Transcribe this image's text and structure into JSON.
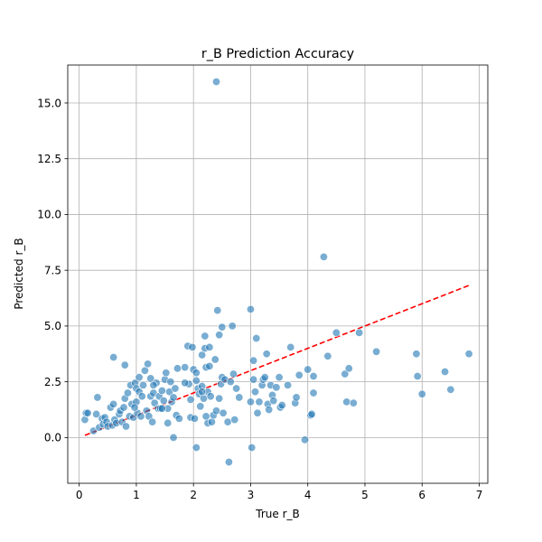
{
  "chart_data": {
    "type": "scatter",
    "title": "r_B Prediction Accuracy",
    "xlabel": "True r_B",
    "ylabel": "Predicted r_B",
    "xlim": [
      -0.2,
      7.15
    ],
    "ylim": [
      -2.05,
      16.7
    ],
    "xticks": [
      0,
      1,
      2,
      3,
      4,
      5,
      6,
      7
    ],
    "xtick_labels": [
      "0",
      "1",
      "2",
      "3",
      "4",
      "5",
      "6",
      "7"
    ],
    "yticks": [
      0.0,
      2.5,
      5.0,
      7.5,
      10.0,
      12.5,
      15.0
    ],
    "ytick_labels": [
      "0.0",
      "2.5",
      "5.0",
      "7.5",
      "10.0",
      "12.5",
      "15.0"
    ],
    "grid": true,
    "colors": {
      "points": "#1f77b4",
      "reference": "#ff0000",
      "grid": "#b0b0b0"
    },
    "reference_line": {
      "style": "dashed",
      "x": [
        0.1,
        6.82
      ],
      "y": [
        0.1,
        6.82
      ]
    },
    "points": [
      [
        0.1,
        0.8
      ],
      [
        0.12,
        1.1
      ],
      [
        0.15,
        1.1
      ],
      [
        0.25,
        0.3
      ],
      [
        0.3,
        1.05
      ],
      [
        0.32,
        1.8
      ],
      [
        0.35,
        0.45
      ],
      [
        0.4,
        0.85
      ],
      [
        0.42,
        0.6
      ],
      [
        0.45,
        0.9
      ],
      [
        0.48,
        0.7
      ],
      [
        0.5,
        0.5
      ],
      [
        0.55,
        1.35
      ],
      [
        0.58,
        0.55
      ],
      [
        0.6,
        1.5
      ],
      [
        0.6,
        3.6
      ],
      [
        0.62,
        0.8
      ],
      [
        0.65,
        0.65
      ],
      [
        0.7,
        1.05
      ],
      [
        0.72,
        1.2
      ],
      [
        0.75,
        0.7
      ],
      [
        0.78,
        1.35
      ],
      [
        0.8,
        1.75
      ],
      [
        0.8,
        3.25
      ],
      [
        0.82,
        0.5
      ],
      [
        0.85,
        2.0
      ],
      [
        0.88,
        0.95
      ],
      [
        0.9,
        2.35
      ],
      [
        0.92,
        1.5
      ],
      [
        0.95,
        0.9
      ],
      [
        0.98,
        2.45
      ],
      [
        1.0,
        1.6
      ],
      [
        1.0,
        2.2
      ],
      [
        1.02,
        1.1
      ],
      [
        1.05,
        2.05
      ],
      [
        1.05,
        2.7
      ],
      [
        1.08,
        0.95
      ],
      [
        1.1,
        1.85
      ],
      [
        1.12,
        2.35
      ],
      [
        1.15,
        3.0
      ],
      [
        1.18,
        1.2
      ],
      [
        1.2,
        3.3
      ],
      [
        1.22,
        0.95
      ],
      [
        1.25,
        1.85
      ],
      [
        1.25,
        2.65
      ],
      [
        1.28,
        0.7
      ],
      [
        1.3,
        2.0
      ],
      [
        1.32,
        1.55
      ],
      [
        1.35,
        2.45
      ],
      [
        1.38,
        1.3
      ],
      [
        1.4,
        1.85
      ],
      [
        1.42,
        1.3
      ],
      [
        1.45,
        2.1
      ],
      [
        1.48,
        1.65
      ],
      [
        1.5,
        2.6
      ],
      [
        1.52,
        2.9
      ],
      [
        1.55,
        1.3
      ],
      [
        1.55,
        0.65
      ],
      [
        1.58,
        2.05
      ],
      [
        1.6,
        2.5
      ],
      [
        1.62,
        1.6
      ],
      [
        1.65,
        1.8
      ],
      [
        1.65,
        0.0
      ],
      [
        1.68,
        2.2
      ],
      [
        1.7,
        1.0
      ],
      [
        1.72,
        3.1
      ],
      [
        1.75,
        0.85
      ],
      [
        1.85,
        3.15
      ],
      [
        1.9,
        4.1
      ],
      [
        1.92,
        2.4
      ],
      [
        1.95,
        1.7
      ],
      [
        1.95,
        0.9
      ],
      [
        1.98,
        4.05
      ],
      [
        2.0,
        3.05
      ],
      [
        2.02,
        0.85
      ],
      [
        2.05,
        2.9
      ],
      [
        2.05,
        -0.45
      ],
      [
        2.08,
        2.2
      ],
      [
        2.1,
        1.95
      ],
      [
        2.12,
        1.4
      ],
      [
        2.15,
        3.7
      ],
      [
        2.15,
        2.3
      ],
      [
        2.18,
        1.75
      ],
      [
        2.2,
        4.0
      ],
      [
        2.2,
        4.55
      ],
      [
        2.22,
        0.95
      ],
      [
        2.22,
        3.15
      ],
      [
        2.25,
        2.05
      ],
      [
        2.25,
        0.65
      ],
      [
        2.28,
        3.2
      ],
      [
        2.28,
        4.05
      ],
      [
        2.3,
        1.85
      ],
      [
        2.32,
        0.7
      ],
      [
        2.35,
        1.0
      ],
      [
        2.38,
        3.5
      ],
      [
        2.4,
        1.2
      ],
      [
        2.42,
        5.7
      ],
      [
        2.45,
        4.6
      ],
      [
        2.45,
        1.75
      ],
      [
        2.48,
        2.4
      ],
      [
        2.5,
        4.95
      ],
      [
        2.5,
        2.7
      ],
      [
        2.52,
        1.1
      ],
      [
        2.55,
        2.6
      ],
      [
        2.6,
        0.7
      ],
      [
        2.62,
        -1.1
      ],
      [
        2.65,
        2.5
      ],
      [
        2.68,
        5.0
      ],
      [
        2.7,
        2.85
      ],
      [
        2.72,
        0.8
      ],
      [
        2.75,
        2.2
      ],
      [
        2.8,
        1.8
      ],
      [
        3.0,
        5.75
      ],
      [
        3.0,
        1.6
      ],
      [
        3.02,
        -0.45
      ],
      [
        3.05,
        3.45
      ],
      [
        3.05,
        2.6
      ],
      [
        3.08,
        2.05
      ],
      [
        3.1,
        4.45
      ],
      [
        3.12,
        1.1
      ],
      [
        3.15,
        1.6
      ],
      [
        3.2,
        2.35
      ],
      [
        3.22,
        2.6
      ],
      [
        3.25,
        2.7
      ],
      [
        3.28,
        3.75
      ],
      [
        3.3,
        1.5
      ],
      [
        3.32,
        1.25
      ],
      [
        3.35,
        2.35
      ],
      [
        3.38,
        1.9
      ],
      [
        3.4,
        1.65
      ],
      [
        3.45,
        2.25
      ],
      [
        3.5,
        2.7
      ],
      [
        3.52,
        1.35
      ],
      [
        3.55,
        1.45
      ],
      [
        3.65,
        2.35
      ],
      [
        3.7,
        4.05
      ],
      [
        3.78,
        1.55
      ],
      [
        3.8,
        1.8
      ],
      [
        3.85,
        2.8
      ],
      [
        3.95,
        -0.1
      ],
      [
        4.0,
        3.05
      ],
      [
        4.05,
        1.0
      ],
      [
        4.07,
        1.05
      ],
      [
        4.1,
        2.0
      ],
      [
        4.1,
        2.75
      ],
      [
        4.28,
        8.1
      ],
      [
        4.35,
        3.65
      ],
      [
        4.5,
        4.7
      ],
      [
        4.65,
        2.85
      ],
      [
        4.68,
        1.6
      ],
      [
        4.72,
        3.1
      ],
      [
        4.8,
        1.55
      ],
      [
        4.9,
        4.7
      ],
      [
        5.2,
        3.85
      ],
      [
        5.9,
        3.75
      ],
      [
        5.92,
        2.75
      ],
      [
        6.0,
        1.95
      ],
      [
        6.4,
        2.95
      ],
      [
        6.5,
        2.15
      ],
      [
        6.82,
        3.75
      ],
      [
        2.4,
        15.95
      ],
      [
        1.3,
        2.35
      ],
      [
        2.05,
        2.55
      ],
      [
        0.97,
        1.35
      ],
      [
        1.45,
        1.3
      ],
      [
        2.15,
        2.05
      ],
      [
        1.85,
        2.45
      ]
    ]
  }
}
